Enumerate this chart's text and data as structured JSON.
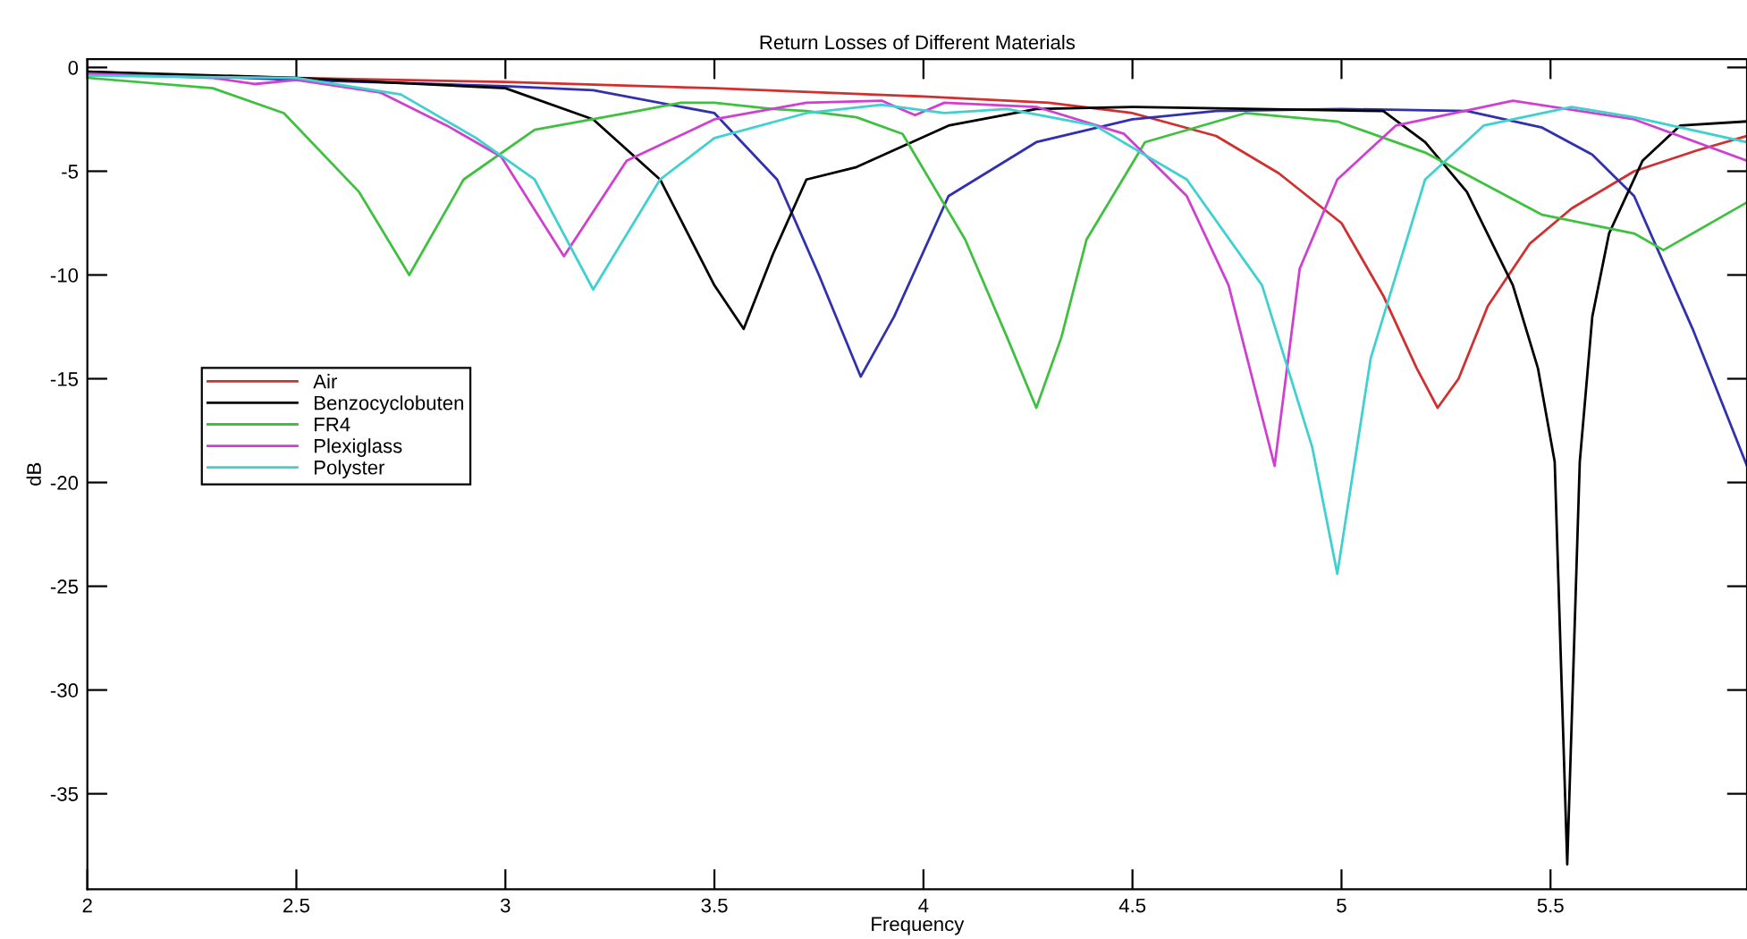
{
  "chart_data": {
    "type": "line",
    "title": "Return Losses of Different Materials",
    "xlabel": "Frequency",
    "ylabel": "dB",
    "xlim": [
      2,
      5.97
    ],
    "ylim": [
      -39.6,
      0.4
    ],
    "xticks": [
      2,
      2.5,
      3,
      3.5,
      4,
      4.5,
      5,
      5.5
    ],
    "yticks": [
      0,
      -5,
      -10,
      -15,
      -20,
      -25,
      -30,
      -35
    ],
    "grid": false,
    "legend": "left",
    "marker": "none",
    "line_style": "solid",
    "series": [
      {
        "name": "Air",
        "color": "#d03030",
        "x": [
          2,
          2.5,
          3,
          3.5,
          4,
          4.3,
          4.5,
          4.7,
          4.85,
          5.0,
          5.1,
          5.18,
          5.23,
          5.28,
          5.35,
          5.45,
          5.55,
          5.7,
          5.85,
          5.97
        ],
        "values": [
          -0.3,
          -0.5,
          -0.7,
          -1.0,
          -1.4,
          -1.7,
          -2.2,
          -3.3,
          -5.1,
          -7.5,
          -11,
          -14.5,
          -16.4,
          -15,
          -11.5,
          -8.5,
          -6.8,
          -5,
          -4,
          -3.3
        ]
      },
      {
        "color": "#3030b0",
        "x": [
          2,
          2.5,
          3,
          3.21,
          3.5,
          3.65,
          3.75,
          3.85,
          3.93,
          4.06,
          4.27,
          4.5,
          4.7,
          5.0,
          5.3,
          5.48,
          5.6,
          5.7,
          5.84,
          5.97
        ],
        "values": [
          -0.2,
          -0.6,
          -0.9,
          -1.1,
          -2.2,
          -5.4,
          -10,
          -14.9,
          -12,
          -6.2,
          -3.6,
          -2.5,
          -2.1,
          -2.0,
          -2.1,
          -2.9,
          -4.2,
          -6.2,
          -12.6,
          -19.2
        ]
      },
      {
        "name": "Benzocyclobuten",
        "color": "#000000",
        "x": [
          2,
          2.5,
          3,
          3.21,
          3.37,
          3.5,
          3.57,
          3.64,
          3.72,
          3.84,
          4.06,
          4.27,
          4.5,
          4.8,
          5.1,
          5.2,
          5.3,
          5.41,
          5.47,
          5.51,
          5.54,
          5.57,
          5.6,
          5.64,
          5.72,
          5.81,
          5.97
        ],
        "values": [
          -0.2,
          -0.5,
          -1.0,
          -2.5,
          -5.4,
          -10.5,
          -12.6,
          -9,
          -5.4,
          -4.8,
          -2.8,
          -2.0,
          -1.9,
          -2.0,
          -2.1,
          -3.6,
          -6,
          -10.5,
          -14.5,
          -19,
          -38.4,
          -19,
          -12,
          -8,
          -4.5,
          -2.8,
          -2.6
        ]
      },
      {
        "name": "FR4",
        "color": "#40c040",
        "x": [
          2,
          2.3,
          2.47,
          2.65,
          2.77,
          2.9,
          3.07,
          3.29,
          3.42,
          3.5,
          3.64,
          3.72,
          3.84,
          3.95,
          4.1,
          4.2,
          4.27,
          4.33,
          4.39,
          4.53,
          4.77,
          4.99,
          5.2,
          5.48,
          5.7,
          5.77,
          5.97
        ],
        "values": [
          -0.5,
          -1.0,
          -2.2,
          -6,
          -10,
          -5.4,
          -3,
          -2.2,
          -1.7,
          -1.7,
          -2.0,
          -2.1,
          -2.4,
          -3.2,
          -8.3,
          -13,
          -16.4,
          -13,
          -8.3,
          -3.6,
          -2.2,
          -2.6,
          -4.1,
          -7.1,
          -8,
          -8.8,
          -6.5
        ]
      },
      {
        "name": "Plexiglass",
        "color": "#d040d0",
        "x": [
          2,
          2.3,
          2.4,
          2.5,
          2.7,
          2.86,
          2.99,
          3.14,
          3.29,
          3.5,
          3.72,
          3.9,
          3.98,
          4.05,
          4.27,
          4.48,
          4.63,
          4.73,
          4.84,
          4.9,
          4.99,
          5.13,
          5.41,
          5.7,
          5.97
        ],
        "values": [
          -0.3,
          -0.5,
          -0.8,
          -0.6,
          -1.2,
          -2.8,
          -4.3,
          -9.1,
          -4.5,
          -2.5,
          -1.7,
          -1.6,
          -2.3,
          -1.7,
          -1.9,
          -3.2,
          -6.2,
          -10.5,
          -19.2,
          -9.7,
          -5.4,
          -2.8,
          -1.6,
          -2.5,
          -4.5
        ]
      },
      {
        "name": "Polyster",
        "color": "#40d0d0",
        "x": [
          2,
          2.5,
          2.75,
          2.93,
          3.07,
          3.21,
          3.37,
          3.5,
          3.72,
          3.9,
          4.05,
          4.2,
          4.41,
          4.63,
          4.81,
          4.93,
          4.99,
          5.07,
          5.2,
          5.34,
          5.55,
          5.7,
          5.97
        ],
        "values": [
          -0.4,
          -0.5,
          -1.3,
          -3.4,
          -5.4,
          -10.7,
          -5.4,
          -3.4,
          -2.2,
          -1.8,
          -2.2,
          -2.0,
          -2.8,
          -5.4,
          -10.5,
          -18.3,
          -24.4,
          -14,
          -5.4,
          -2.8,
          -1.9,
          -2.4,
          -3.6
        ]
      }
    ]
  }
}
